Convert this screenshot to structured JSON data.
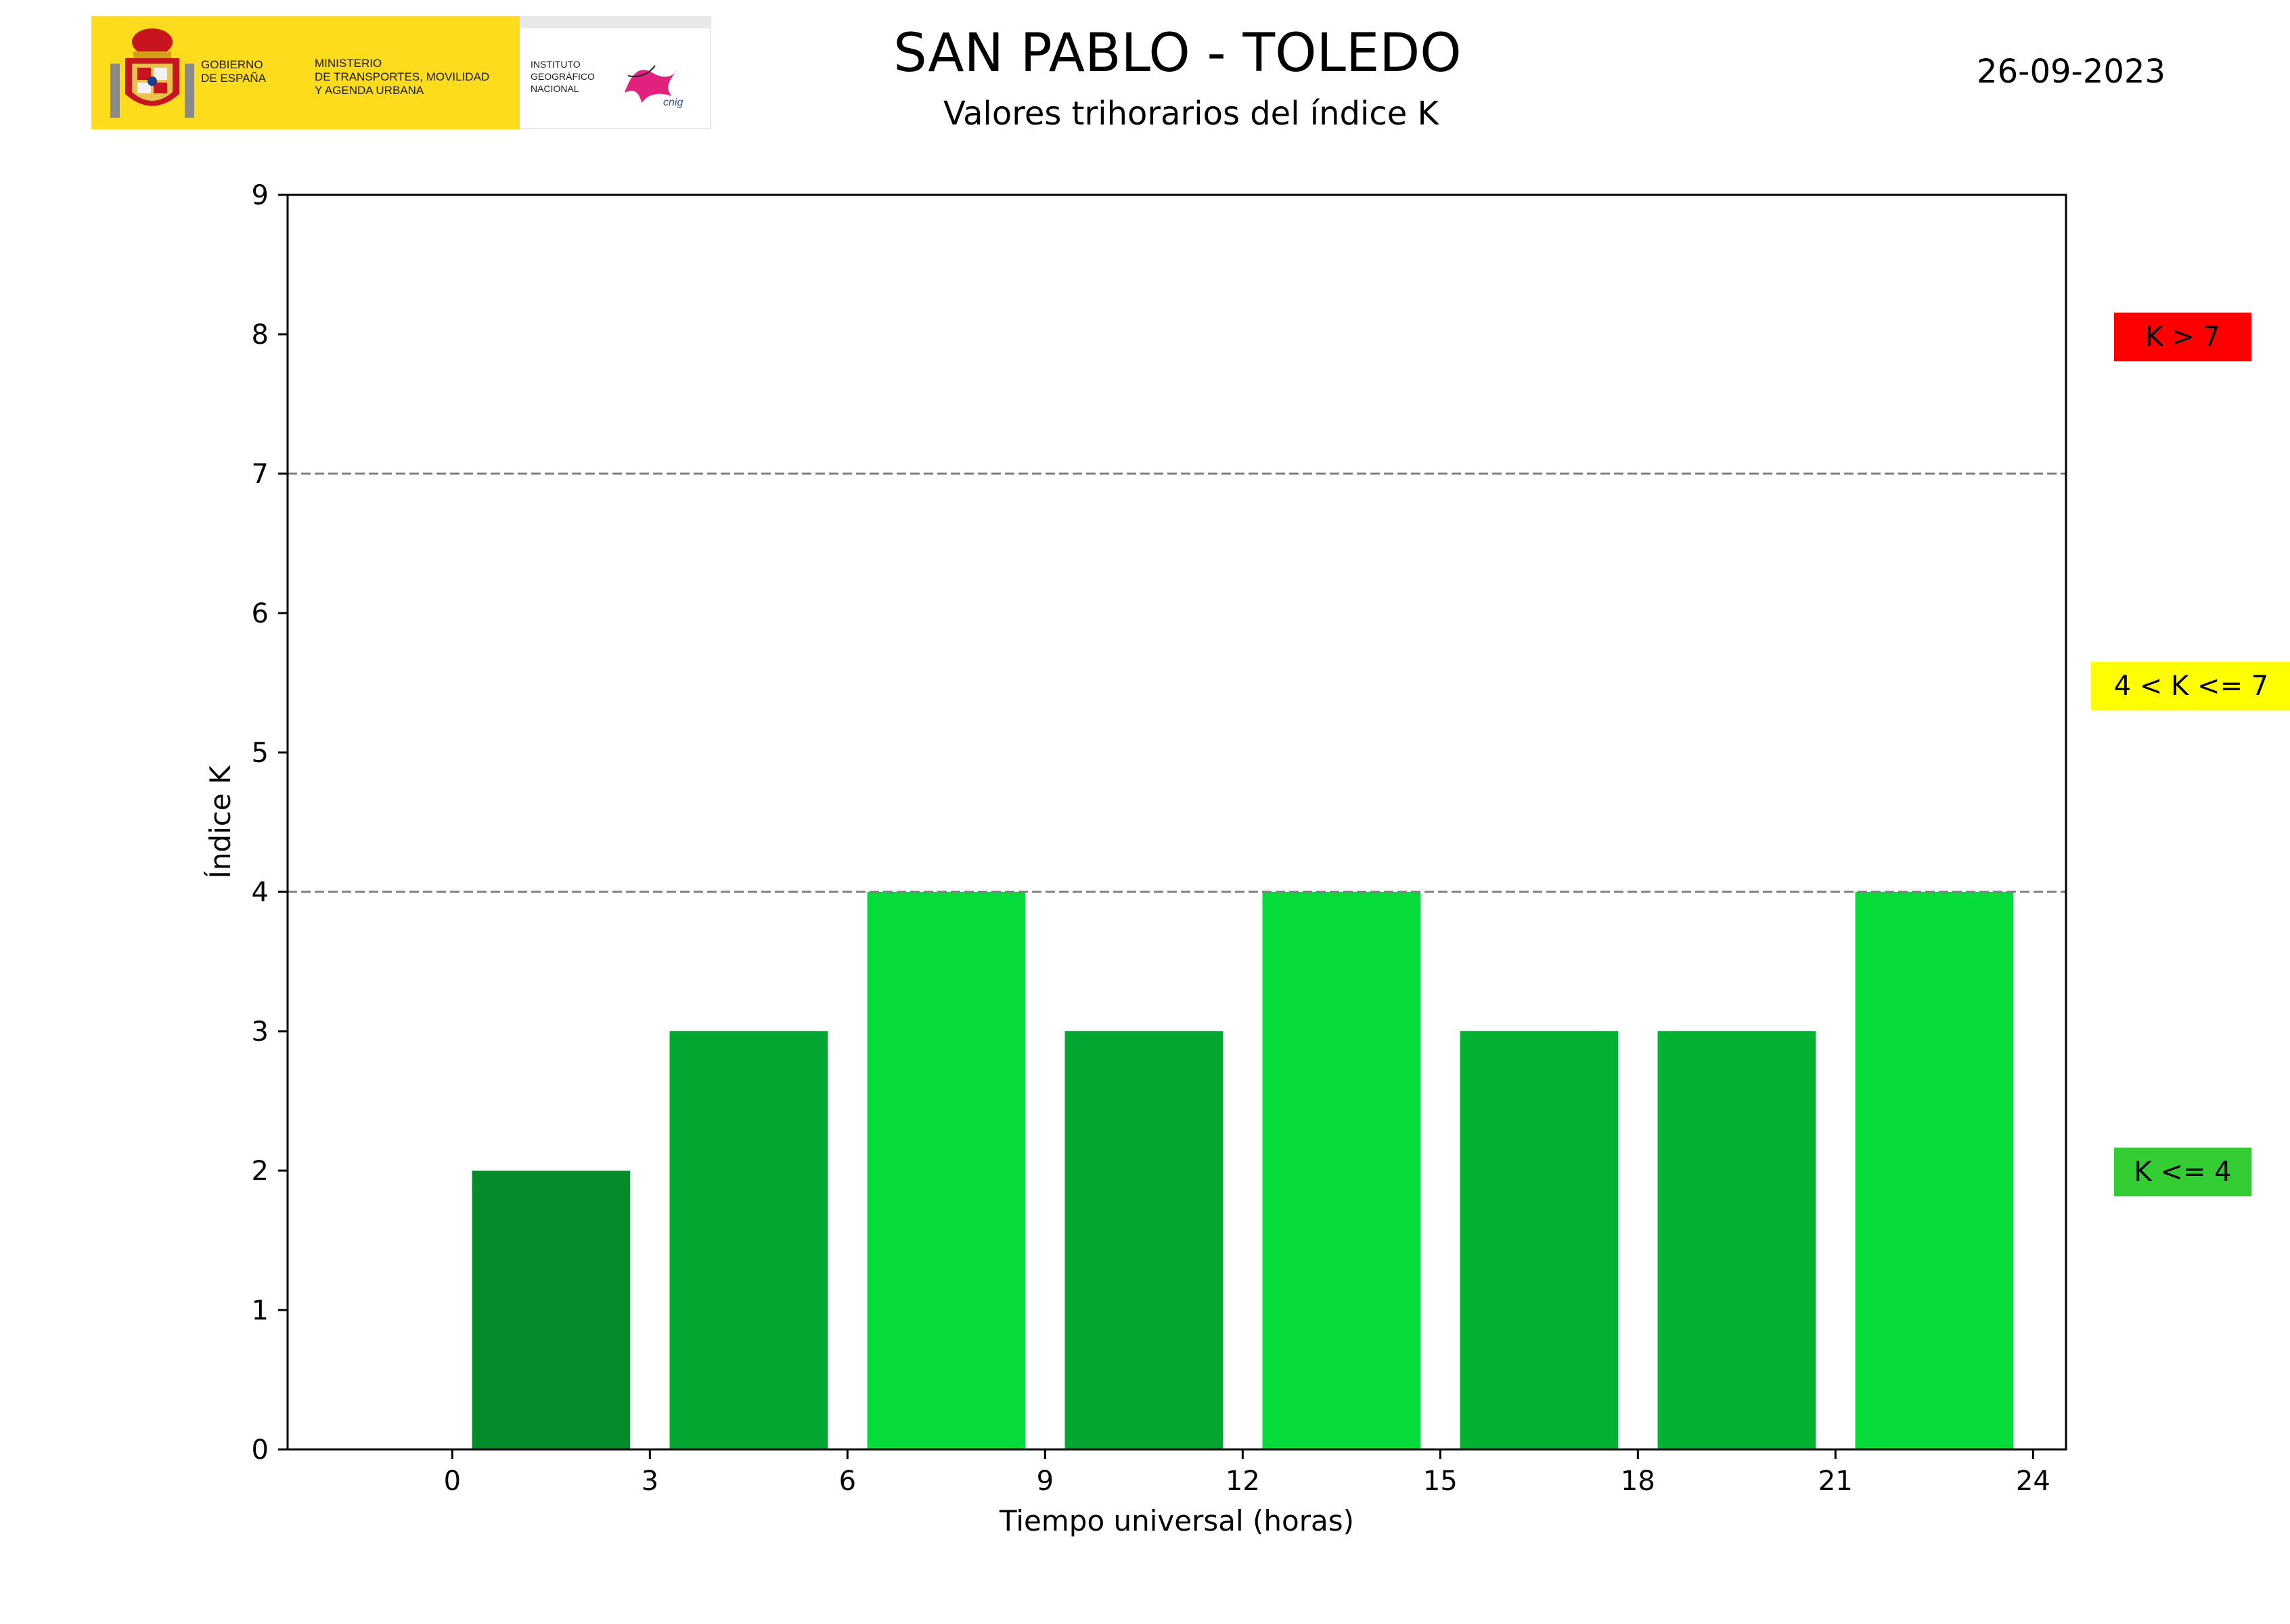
{
  "header": {
    "title": "SAN PABLO - TOLEDO",
    "subtitle": "Valores trihorarios del índice K",
    "date": "26-09-2023",
    "logo": {
      "gobierno": "GOBIERNO\nDE ESPAÑA",
      "ministerio": "MINISTERIO\nDE TRANSPORTES, MOVILIDAD\nY AGENDA URBANA",
      "instituto": "INSTITUTO\nGEOGRÁFICO\nNACIONAL",
      "cnig": "cnig"
    }
  },
  "legend": [
    {
      "label": "K > 7",
      "color": "#ff0000"
    },
    {
      "label": "4 < K <= 7",
      "color": "#ffff00"
    },
    {
      "label": "K <= 4",
      "color": "#33cc33"
    }
  ],
  "chart_data": {
    "type": "bar",
    "xlabel": "Tiempo universal (horas)",
    "ylabel": "Índice K",
    "xlim": [
      -2.5,
      24.5
    ],
    "ylim": [
      0,
      9
    ],
    "xticks": [
      0,
      3,
      6,
      9,
      12,
      15,
      18,
      21,
      24
    ],
    "yticks": [
      0,
      1,
      2,
      3,
      4,
      5,
      6,
      7,
      8,
      9
    ],
    "bar_width_hours": 2.4,
    "thresholds": [
      4,
      7
    ],
    "grid": false,
    "bars": [
      {
        "x": 1.5,
        "value": 2,
        "color": "#058b29"
      },
      {
        "x": 4.5,
        "value": 3,
        "color": "#03a631"
      },
      {
        "x": 7.5,
        "value": 4,
        "color": "#05db3a"
      },
      {
        "x": 10.5,
        "value": 3,
        "color": "#03a631"
      },
      {
        "x": 13.5,
        "value": 4,
        "color": "#05db3a"
      },
      {
        "x": 16.5,
        "value": 3,
        "color": "#02b230"
      },
      {
        "x": 19.5,
        "value": 3,
        "color": "#02b230"
      },
      {
        "x": 22.5,
        "value": 4,
        "color": "#05db3a"
      }
    ]
  }
}
